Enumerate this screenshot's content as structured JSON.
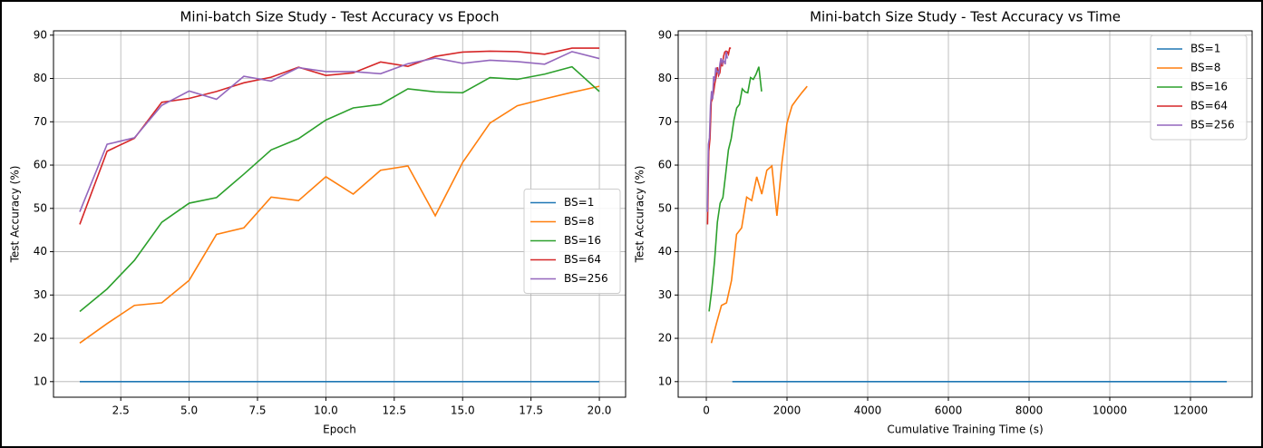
{
  "chart_data": [
    {
      "type": "line",
      "title": "Mini-batch Size Study - Test Accuracy vs Epoch",
      "x_label": "Epoch",
      "y_label": "Test Accuracy (%)",
      "x": [
        1,
        2,
        3,
        4,
        5,
        6,
        7,
        8,
        9,
        10,
        11,
        12,
        13,
        14,
        15,
        16,
        17,
        18,
        19,
        20
      ],
      "series": [
        {
          "name": "BS=1",
          "color": "#1f77b4",
          "values": [
            10,
            10,
            10,
            10,
            10,
            10,
            10,
            10,
            10,
            10,
            10,
            10,
            10,
            10,
            10,
            10,
            10,
            10,
            10,
            10
          ]
        },
        {
          "name": "BS=8",
          "color": "#ff7f0e",
          "values": [
            18.9,
            23.4,
            27.6,
            28.2,
            33.4,
            44.0,
            45.5,
            52.6,
            51.8,
            57.3,
            53.3,
            58.8,
            59.8,
            48.3,
            60.6,
            69.7,
            73.7,
            75.3,
            76.8,
            78.2
          ]
        },
        {
          "name": "BS=16",
          "color": "#2ca02c",
          "values": [
            26.2,
            31.4,
            38.0,
            46.8,
            51.2,
            52.5,
            57.9,
            63.5,
            66.1,
            70.4,
            73.2,
            74.0,
            77.6,
            76.9,
            76.7,
            80.2,
            79.8,
            81.0,
            82.7,
            77.0
          ]
        },
        {
          "name": "BS=64",
          "color": "#d62728",
          "values": [
            46.3,
            63.2,
            66.2,
            74.5,
            75.4,
            77.0,
            79.0,
            80.3,
            82.6,
            80.7,
            81.3,
            83.8,
            82.8,
            85.1,
            86.1,
            86.3,
            86.2,
            85.6,
            87.0,
            87.0
          ]
        },
        {
          "name": "BS=256",
          "color": "#9467bd",
          "values": [
            49.2,
            64.8,
            66.3,
            73.8,
            77.1,
            75.2,
            80.5,
            79.4,
            82.5,
            81.6,
            81.6,
            81.1,
            83.4,
            84.7,
            83.5,
            84.2,
            83.9,
            83.3,
            86.2,
            84.6
          ]
        }
      ],
      "xlim": [
        0.04,
        20.96
      ],
      "ylim": [
        6.4,
        91.0
      ],
      "xticks": [
        2.5,
        {
          "value": 5,
          "label": "5.0"
        },
        7.5,
        {
          "value": 10,
          "label": "10.0"
        },
        12.5,
        {
          "value": 15,
          "label": "15.0"
        },
        17.5,
        {
          "value": 20,
          "label": "20.0"
        }
      ],
      "yticks": [
        10,
        20,
        30,
        40,
        50,
        60,
        70,
        80,
        90
      ],
      "grid": true,
      "legend": "center right"
    },
    {
      "type": "line",
      "title": "Mini-batch Size Study - Test Accuracy vs Time",
      "x_label": "Cumulative Training Time (s)",
      "y_label": "Test Accuracy (%)",
      "series": [
        {
          "name": "BS=1",
          "color": "#1f77b4",
          "x": [
            645,
            1290,
            1935,
            2580,
            3225,
            3870,
            4515,
            5160,
            5805,
            6450,
            7095,
            7740,
            8385,
            9030,
            9675,
            10320,
            10965,
            11610,
            12255,
            12900
          ],
          "values": [
            10,
            10,
            10,
            10,
            10,
            10,
            10,
            10,
            10,
            10,
            10,
            10,
            10,
            10,
            10,
            10,
            10,
            10,
            10,
            10
          ]
        },
        {
          "name": "BS=8",
          "color": "#ff7f0e",
          "x": [
            125,
            250,
            375,
            500,
            625,
            750,
            875,
            1000,
            1125,
            1250,
            1375,
            1500,
            1625,
            1750,
            1875,
            2000,
            2125,
            2250,
            2375,
            2500
          ],
          "values": [
            18.9,
            23.4,
            27.6,
            28.2,
            33.4,
            44.0,
            45.5,
            52.6,
            51.8,
            57.3,
            53.3,
            58.8,
            59.8,
            48.3,
            60.6,
            69.7,
            73.7,
            75.3,
            76.8,
            78.2
          ]
        },
        {
          "name": "BS=16",
          "color": "#2ca02c",
          "x": [
            68.5,
            137,
            205.5,
            274,
            342.5,
            411,
            479.5,
            548,
            616.5,
            685,
            753.5,
            822,
            890.5,
            959,
            1027.5,
            1096,
            1164.5,
            1233,
            1301.5,
            1370
          ],
          "values": [
            26.2,
            31.4,
            38.0,
            46.8,
            51.2,
            52.5,
            57.9,
            63.5,
            66.1,
            70.4,
            73.2,
            74.0,
            77.6,
            76.9,
            76.7,
            80.2,
            79.8,
            81.0,
            82.7,
            77.0
          ]
        },
        {
          "name": "BS=64",
          "color": "#d62728",
          "x": [
            30.5,
            61,
            91.5,
            122,
            152.5,
            183,
            213.5,
            244,
            274.5,
            305,
            335.5,
            366,
            396.5,
            427,
            457.5,
            488,
            518.5,
            549,
            579.5,
            610
          ],
          "values": [
            46.3,
            63.2,
            66.2,
            74.5,
            75.4,
            77.0,
            79.0,
            80.3,
            82.6,
            80.7,
            81.3,
            83.8,
            82.8,
            85.1,
            86.1,
            86.3,
            86.2,
            85.6,
            87.0,
            87.0
          ]
        },
        {
          "name": "BS=256",
          "color": "#9467bd",
          "x": [
            26,
            52,
            78,
            104,
            130,
            156,
            182,
            208,
            234,
            260,
            286,
            312,
            338,
            364,
            390,
            416,
            442,
            468,
            494,
            520
          ],
          "values": [
            49.2,
            64.8,
            66.3,
            73.8,
            77.1,
            75.2,
            80.5,
            79.4,
            82.5,
            81.6,
            81.6,
            81.1,
            83.4,
            84.7,
            83.5,
            84.2,
            83.9,
            83.3,
            86.2,
            84.6
          ]
        }
      ],
      "xlim": [
        -697,
        13528
      ],
      "ylim": [
        6.4,
        91.0
      ],
      "xticks": [
        0,
        2000,
        4000,
        6000,
        8000,
        10000,
        12000
      ],
      "yticks": [
        10,
        20,
        30,
        40,
        50,
        60,
        70,
        80,
        90
      ],
      "grid": true,
      "legend": "upper right"
    }
  ]
}
